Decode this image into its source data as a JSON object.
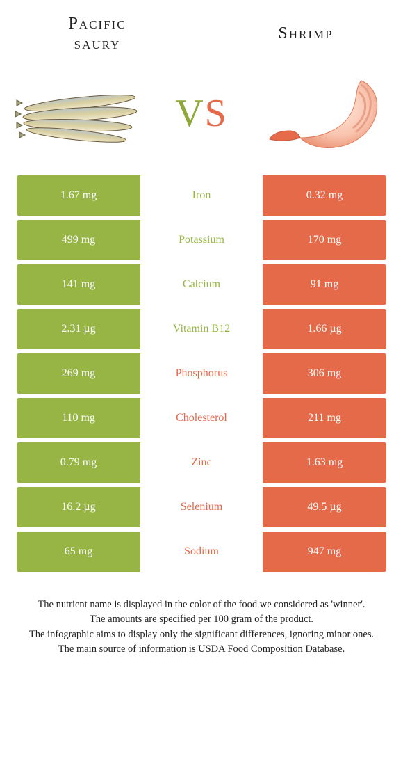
{
  "colors": {
    "left": "#96b545",
    "right": "#e46a4a",
    "background": "#ffffff",
    "text_dark": "#222222"
  },
  "header": {
    "left_title_l1": "Pacific",
    "left_title_l2": "saury",
    "right_title": "Shrimp",
    "vs_v": "V",
    "vs_s": "S"
  },
  "nutrients": [
    {
      "label": "Iron",
      "left": "1.67 mg",
      "right": "0.32 mg",
      "winner": "left"
    },
    {
      "label": "Potassium",
      "left": "499 mg",
      "right": "170 mg",
      "winner": "left"
    },
    {
      "label": "Calcium",
      "left": "141 mg",
      "right": "91 mg",
      "winner": "left"
    },
    {
      "label": "Vitamin B12",
      "left": "2.31 µg",
      "right": "1.66 µg",
      "winner": "left"
    },
    {
      "label": "Phosphorus",
      "left": "269 mg",
      "right": "306 mg",
      "winner": "right"
    },
    {
      "label": "Cholesterol",
      "left": "110 mg",
      "right": "211 mg",
      "winner": "right"
    },
    {
      "label": "Zinc",
      "left": "0.79 mg",
      "right": "1.63 mg",
      "winner": "right"
    },
    {
      "label": "Selenium",
      "left": "16.2 µg",
      "right": "49.5 µg",
      "winner": "right"
    },
    {
      "label": "Sodium",
      "left": "65 mg",
      "right": "947 mg",
      "winner": "right"
    }
  ],
  "footnotes": [
    "The nutrient name is displayed in the color of the food we considered as 'winner'.",
    "The amounts are specified per 100 gram of the product.",
    "The infographic aims to display only the significant differences, ignoring minor ones.",
    "The main source of information is USDA Food Composition Database."
  ]
}
